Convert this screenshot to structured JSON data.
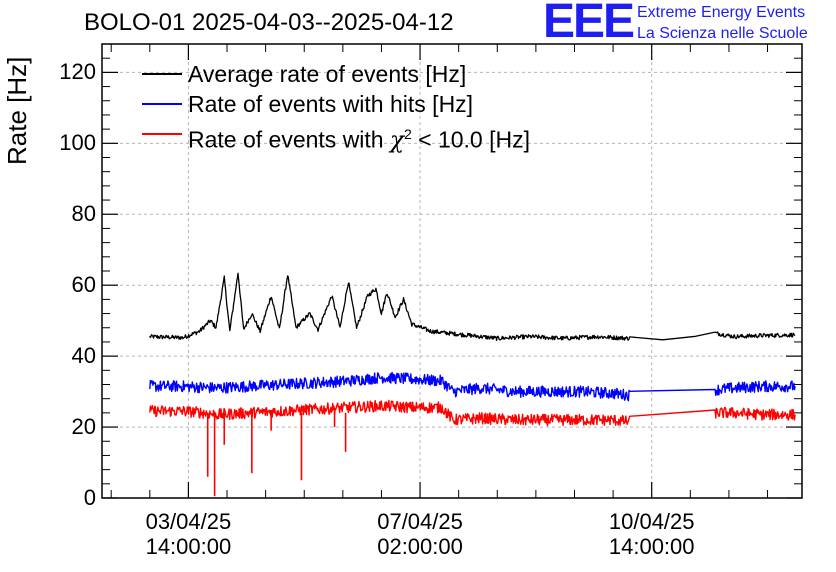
{
  "header": {
    "title": "BOLO-01 2025-04-03--2025-04-12",
    "logo_text": "EEE",
    "brand_line1": "Extreme Energy Events",
    "brand_line2": "La Scienza nelle Scuole",
    "brand_color": "#1e1ef0"
  },
  "chart_data": {
    "type": "line",
    "ylabel": "Rate [Hz]",
    "ylim": [
      0,
      128
    ],
    "yticks": [
      0,
      20,
      40,
      60,
      80,
      100,
      120
    ],
    "ytick_labels": [
      "0",
      "20",
      "40",
      "60",
      "80",
      "100",
      "120"
    ],
    "xlim": [
      "2025-04-02T06:40",
      "2025-04-12T20:30"
    ],
    "xticks": [
      {
        "time": "2025-04-03T14:00",
        "line1": "03/04/25",
        "line2": "14:00:00"
      },
      {
        "time": "2025-04-07T02:00",
        "line1": "07/04/25",
        "line2": "02:00:00"
      },
      {
        "time": "2025-04-10T14:00",
        "line1": "10/04/25",
        "line2": "14:00:00"
      }
    ],
    "grid": true,
    "legend_position": "top-left",
    "series": [
      {
        "name": "Average rate of events [Hz]",
        "color": "#000000",
        "points": [
          [
            "2025-04-03T00:00",
            45.5
          ],
          [
            "2025-04-03T12:00",
            45.2
          ],
          [
            "2025-04-03T18:00",
            47.0
          ],
          [
            "2025-04-03T22:00",
            50.0
          ],
          [
            "2025-04-04T00:00",
            48.0
          ],
          [
            "2025-04-04T03:00",
            62.0
          ],
          [
            "2025-04-04T05:00",
            47.0
          ],
          [
            "2025-04-04T08:00",
            63.5
          ],
          [
            "2025-04-04T10:00",
            47.5
          ],
          [
            "2025-04-04T13:00",
            52.0
          ],
          [
            "2025-04-04T16:00",
            47.0
          ],
          [
            "2025-04-04T20:00",
            57.0
          ],
          [
            "2025-04-04T23:00",
            47.5
          ],
          [
            "2025-04-05T02:00",
            63.0
          ],
          [
            "2025-04-05T05:00",
            48.0
          ],
          [
            "2025-04-05T10:00",
            52.0
          ],
          [
            "2025-04-05T13:00",
            47.5
          ],
          [
            "2025-04-05T18:00",
            57.0
          ],
          [
            "2025-04-05T21:00",
            48.0
          ],
          [
            "2025-04-06T00:00",
            61.0
          ],
          [
            "2025-04-06T03:00",
            48.0
          ],
          [
            "2025-04-06T07:00",
            57.0
          ],
          [
            "2025-04-06T10:00",
            59.0
          ],
          [
            "2025-04-06T12:00",
            52.0
          ],
          [
            "2025-04-06T14:00",
            58.0
          ],
          [
            "2025-04-06T17:00",
            51.0
          ],
          [
            "2025-04-06T20:00",
            56.0
          ],
          [
            "2025-04-06T23:00",
            49.0
          ],
          [
            "2025-04-07T06:00",
            47.0
          ],
          [
            "2025-04-07T18:00",
            46.0
          ],
          [
            "2025-04-08T06:00",
            45.0
          ],
          [
            "2025-04-08T18:00",
            45.5
          ],
          [
            "2025-04-09T06:00",
            45.0
          ],
          [
            "2025-04-09T18:00",
            45.5
          ],
          [
            "2025-04-10T06:00",
            45.0
          ],
          [
            "2025-04-10T18:00",
            45.0
          ],
          [
            "2025-04-11T06:00",
            45.5
          ],
          [
            "2025-04-11T13:00",
            46.5
          ],
          [
            "2025-04-11T20:00",
            45.5
          ],
          [
            "2025-04-12T06:00",
            45.8
          ],
          [
            "2025-04-12T18:00",
            46.0
          ]
        ]
      },
      {
        "name": "Rate of events with hits [Hz]",
        "color": "#0000ff",
        "points": [
          [
            "2025-04-03T00:00",
            31.5
          ],
          [
            "2025-04-03T12:00",
            31.5
          ],
          [
            "2025-04-04T00:00",
            31.0
          ],
          [
            "2025-04-04T12:00",
            31.5
          ],
          [
            "2025-04-05T00:00",
            32.0
          ],
          [
            "2025-04-05T12:00",
            32.5
          ],
          [
            "2025-04-06T00:00",
            33.0
          ],
          [
            "2025-04-06T12:00",
            34.0
          ],
          [
            "2025-04-07T00:00",
            33.5
          ],
          [
            "2025-04-07T10:00",
            33.0
          ],
          [
            "2025-04-07T14:00",
            30.0
          ],
          [
            "2025-04-08T00:00",
            31.0
          ],
          [
            "2025-04-08T12:00",
            30.0
          ],
          [
            "2025-04-09T00:00",
            30.0
          ],
          [
            "2025-04-09T12:00",
            30.0
          ],
          [
            "2025-04-10T00:00",
            29.5
          ],
          [
            "2025-04-10T06:00",
            29.0
          ],
          [
            "2025-04-11T13:00",
            30.5
          ],
          [
            "2025-04-11T20:00",
            31.0
          ],
          [
            "2025-04-12T06:00",
            31.5
          ],
          [
            "2025-04-12T18:00",
            31.5
          ]
        ]
      },
      {
        "name": "Rate of events with",
        "name_suffix": "< 10.0 [Hz]",
        "symbol": "χ",
        "superscript": "2",
        "color": "#ff0000",
        "points": [
          [
            "2025-04-03T00:00",
            24.5
          ],
          [
            "2025-04-03T12:00",
            24.5
          ],
          [
            "2025-04-03T20:00",
            24.0
          ],
          [
            "2025-04-04T00:00",
            23.5
          ],
          [
            "2025-04-04T12:00",
            24.0
          ],
          [
            "2025-04-05T00:00",
            24.5
          ],
          [
            "2025-04-05T12:00",
            25.0
          ],
          [
            "2025-04-06T00:00",
            25.5
          ],
          [
            "2025-04-06T12:00",
            26.0
          ],
          [
            "2025-04-07T00:00",
            25.5
          ],
          [
            "2025-04-07T10:00",
            25.5
          ],
          [
            "2025-04-07T14:00",
            22.0
          ],
          [
            "2025-04-08T00:00",
            22.5
          ],
          [
            "2025-04-08T12:00",
            22.0
          ],
          [
            "2025-04-09T00:00",
            22.0
          ],
          [
            "2025-04-09T12:00",
            22.0
          ],
          [
            "2025-04-10T00:00",
            22.0
          ],
          [
            "2025-04-10T06:00",
            21.5
          ],
          [
            "2025-04-11T13:00",
            24.0
          ],
          [
            "2025-04-11T20:00",
            24.0
          ],
          [
            "2025-04-12T06:00",
            23.5
          ],
          [
            "2025-04-12T18:00",
            23.5
          ]
        ],
        "dips": [
          [
            "2025-04-03T21:00",
            6.0
          ],
          [
            "2025-04-03T23:30",
            0.5
          ],
          [
            "2025-04-04T03:00",
            15.0
          ],
          [
            "2025-04-04T13:00",
            7.0
          ],
          [
            "2025-04-04T20:00",
            19.0
          ],
          [
            "2025-04-05T07:00",
            5.0
          ],
          [
            "2025-04-05T19:00",
            20.0
          ],
          [
            "2025-04-05T23:00",
            13.0
          ]
        ]
      }
    ]
  }
}
